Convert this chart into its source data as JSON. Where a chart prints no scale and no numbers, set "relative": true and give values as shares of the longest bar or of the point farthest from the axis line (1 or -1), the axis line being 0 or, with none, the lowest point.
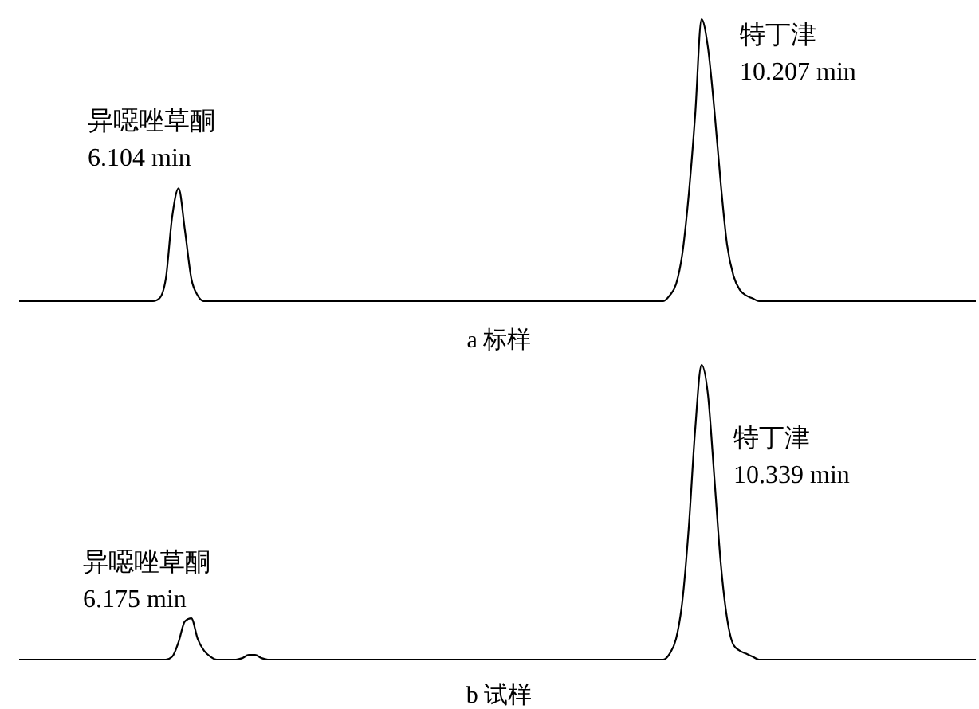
{
  "chart_data": [
    {
      "type": "line",
      "relative": true,
      "xlabel": "a 标样",
      "annotations": [
        "异噁唑草酮\n6.104 min",
        "特丁津\n10.207 min"
      ],
      "categories": [
        null,
        null,
        null,
        null,
        null,
        null,
        null,
        null,
        null,
        null,
        null,
        null,
        null,
        null,
        null,
        null,
        null,
        null,
        null,
        null,
        null,
        null,
        null,
        null,
        null,
        null,
        null,
        null,
        null,
        null,
        null,
        null,
        null,
        null,
        null,
        null,
        null,
        null,
        null,
        null,
        null,
        null,
        null,
        null,
        null,
        null,
        null,
        null,
        null,
        null,
        null,
        null,
        null,
        null,
        null,
        null,
        null,
        null,
        null,
        null,
        null,
        null,
        null,
        null,
        null,
        null,
        null,
        null,
        null,
        null,
        null,
        null,
        null,
        null,
        null,
        null,
        null,
        null,
        null,
        null,
        null,
        null,
        null,
        null,
        null,
        null,
        null,
        null,
        null,
        null,
        null,
        null,
        null,
        null,
        null,
        null,
        null,
        null,
        null,
        null,
        null,
        null,
        null,
        null,
        null,
        null,
        null,
        null,
        null,
        null,
        null,
        null,
        null,
        null,
        null,
        null,
        null,
        null,
        null,
        null,
        null,
        null,
        null,
        null,
        null,
        null,
        null,
        null,
        null,
        null,
        null,
        null,
        null,
        null,
        null,
        null,
        null,
        null,
        null,
        null,
        null,
        null,
        null,
        null,
        null,
        null,
        null,
        null,
        null,
        null,
        null
      ],
      "series": [
        {
          "color": "#000000",
          "values": [
            0,
            0,
            0,
            0,
            0,
            0,
            0,
            0,
            0,
            0,
            0,
            0,
            0,
            0,
            0,
            0,
            0,
            0,
            0,
            0,
            0,
            0,
            0.01,
            0.08,
            0.3,
            0.4,
            0.25,
            0.08,
            0.02,
            0,
            0,
            0,
            0,
            0,
            0,
            0,
            0,
            0,
            0,
            0,
            0,
            0,
            0,
            0,
            0,
            0,
            0,
            0,
            0,
            0,
            0,
            0,
            0,
            0,
            0,
            0,
            0,
            0,
            0,
            0,
            0,
            0,
            0,
            0,
            0,
            0,
            0,
            0,
            0,
            0,
            0,
            0,
            0,
            0,
            0,
            0,
            0,
            0,
            0,
            0,
            0,
            0,
            0,
            0,
            0,
            0,
            0,
            0,
            0,
            0,
            0,
            0,
            0,
            0,
            0,
            0,
            0,
            0,
            0,
            0,
            0,
            0,
            0.02,
            0.06,
            0.17,
            0.38,
            0.66,
            1,
            0.9,
            0.68,
            0.42,
            0.2,
            0.09,
            0.04,
            0.02,
            0.01,
            0,
            0,
            0,
            0,
            0,
            0,
            0,
            0,
            0,
            0,
            0,
            0,
            0,
            0,
            0,
            0,
            0,
            0,
            0,
            0,
            0,
            0,
            0,
            0,
            0,
            0,
            0,
            0,
            0,
            0,
            0,
            0,
            0,
            0,
            0
          ]
        }
      ]
    },
    {
      "type": "line",
      "relative": true,
      "xlabel": "b 试样",
      "annotations": [
        "异噁唑草酮\n6.175 min",
        "特丁津\n10.339 min"
      ],
      "categories": [
        null,
        null,
        null,
        null,
        null,
        null,
        null,
        null,
        null,
        null,
        null,
        null,
        null,
        null,
        null,
        null,
        null,
        null,
        null,
        null,
        null,
        null,
        null,
        null,
        null,
        null,
        null,
        null,
        null,
        null,
        null,
        null,
        null,
        null,
        null,
        null,
        null,
        null,
        null,
        null,
        null,
        null,
        null,
        null,
        null,
        null,
        null,
        null,
        null,
        null,
        null,
        null,
        null,
        null,
        null,
        null,
        null,
        null,
        null,
        null,
        null,
        null,
        null,
        null,
        null,
        null,
        null,
        null,
        null,
        null,
        null,
        null,
        null,
        null,
        null,
        null,
        null,
        null,
        null,
        null,
        null,
        null,
        null,
        null,
        null,
        null,
        null,
        null,
        null,
        null,
        null,
        null,
        null,
        null,
        null,
        null,
        null,
        null,
        null,
        null,
        null,
        null,
        null,
        null,
        null,
        null,
        null,
        null,
        null,
        null,
        null,
        null,
        null,
        null,
        null,
        null,
        null,
        null,
        null,
        null,
        null,
        null,
        null,
        null,
        null,
        null,
        null,
        null,
        null,
        null,
        null,
        null,
        null,
        null,
        null,
        null,
        null,
        null,
        null,
        null,
        null,
        null,
        null,
        null,
        null,
        null,
        null,
        null,
        null,
        null,
        null
      ],
      "series": [
        {
          "color": "#000000",
          "values": [
            0,
            0,
            0,
            0,
            0,
            0,
            0,
            0,
            0,
            0,
            0,
            0,
            0,
            0,
            0,
            0,
            0,
            0,
            0,
            0,
            0,
            0,
            0,
            0,
            0.01,
            0.06,
            0.13,
            0.14,
            0.07,
            0.03,
            0.01,
            0,
            0,
            0,
            0,
            0.005,
            0.016,
            0.016,
            0.005,
            0,
            0,
            0,
            0,
            0,
            0,
            0,
            0,
            0,
            0,
            0,
            0,
            0,
            0,
            0,
            0,
            0,
            0,
            0,
            0,
            0,
            0,
            0,
            0,
            0,
            0,
            0,
            0,
            0,
            0,
            0,
            0,
            0,
            0,
            0,
            0,
            0,
            0,
            0,
            0,
            0,
            0,
            0,
            0,
            0,
            0,
            0,
            0,
            0,
            0,
            0,
            0,
            0,
            0,
            0,
            0,
            0,
            0,
            0,
            0,
            0,
            0,
            0,
            0.02,
            0.07,
            0.2,
            0.45,
            0.78,
            1,
            0.9,
            0.62,
            0.33,
            0.14,
            0.05,
            0.03,
            0.02,
            0.01,
            0,
            0,
            0,
            0,
            0,
            0,
            0,
            0,
            0,
            0,
            0,
            0,
            0,
            0,
            0,
            0,
            0,
            0,
            0,
            0,
            0,
            0,
            0,
            0,
            0,
            0,
            0,
            0,
            0,
            0,
            0,
            0,
            0,
            0,
            0
          ]
        }
      ]
    }
  ]
}
